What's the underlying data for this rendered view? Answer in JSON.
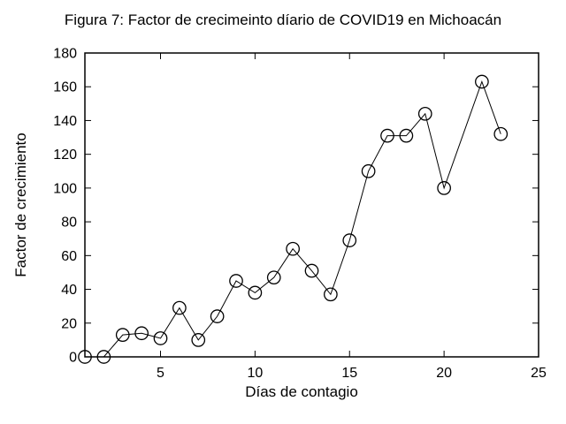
{
  "figure": {
    "background_color": "#ffffff",
    "foreground_color": "#000000"
  },
  "chart_data": {
    "type": "line",
    "title": "Figura 7: Factor de crecimeinto díario de COVID19 en Michoacán",
    "xlabel": "Días de contagio",
    "ylabel": "Factor de crecimiento",
    "xlim": [
      1,
      25
    ],
    "ylim": [
      0,
      180
    ],
    "xticks": [
      5,
      10,
      15,
      20,
      25
    ],
    "yticks": [
      0,
      20,
      40,
      60,
      80,
      100,
      120,
      140,
      160,
      180
    ],
    "grid": false,
    "legend_position": "none",
    "marker_style": "open-circle",
    "line_color": "#000000",
    "marker_color": "#000000",
    "series": [
      {
        "name": "Factor de crecimiento",
        "x": [
          1,
          2,
          3,
          4,
          5,
          6,
          7,
          8,
          9,
          10,
          11,
          12,
          13,
          14,
          15,
          16,
          17,
          18,
          19,
          20,
          22,
          23
        ],
        "y": [
          0,
          0,
          13,
          14,
          11,
          29,
          10,
          24,
          45,
          38,
          47,
          64,
          51,
          37,
          69,
          110,
          131,
          131,
          144,
          100,
          163,
          132
        ]
      }
    ]
  }
}
